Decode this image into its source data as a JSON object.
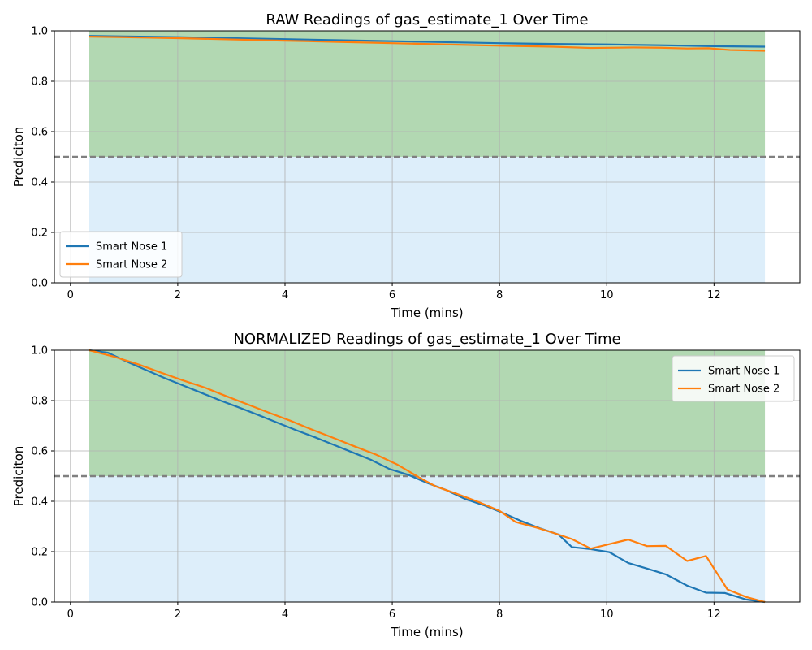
{
  "chart_data": [
    {
      "type": "line",
      "title": "RAW Readings of gas_estimate_1 Over Time",
      "xlabel": "Time (mins)",
      "ylabel": "Prediciton",
      "xlim": [
        -0.3,
        13.6
      ],
      "ylim": [
        0,
        1
      ],
      "xticks": [
        0,
        2,
        4,
        6,
        8,
        10,
        12
      ],
      "yticks": [
        0.0,
        0.2,
        0.4,
        0.6,
        0.8,
        1.0
      ],
      "grid": true,
      "legend_position": "lower-left",
      "threshold": 0.5,
      "shaded_regions": [
        {
          "x0": 0.35,
          "x1": 12.95,
          "y0": 0.5,
          "y1": 1.0,
          "color": "#b2d8b2"
        },
        {
          "x0": 0.35,
          "x1": 12.95,
          "y0": 0.0,
          "y1": 0.5,
          "color": "#ddeefa"
        }
      ],
      "series": [
        {
          "name": "Smart Nose 1",
          "color": "#1f77b4",
          "x": [
            0.35,
            1,
            2,
            3,
            4,
            5,
            6,
            7,
            8,
            9,
            10,
            11,
            12,
            12.95
          ],
          "y": [
            0.98,
            0.978,
            0.975,
            0.971,
            0.967,
            0.963,
            0.959,
            0.955,
            0.951,
            0.948,
            0.946,
            0.943,
            0.939,
            0.937
          ]
        },
        {
          "name": "Smart Nose 2",
          "color": "#ff7f0e",
          "x": [
            0.35,
            1,
            2,
            3,
            4,
            5,
            6,
            7,
            8,
            9,
            9.7,
            10.5,
            11,
            11.5,
            11.9,
            12.3,
            12.95
          ],
          "y": [
            0.977,
            0.975,
            0.971,
            0.966,
            0.961,
            0.956,
            0.951,
            0.946,
            0.941,
            0.937,
            0.932,
            0.934,
            0.933,
            0.93,
            0.931,
            0.924,
            0.921
          ]
        }
      ]
    },
    {
      "type": "line",
      "title": "NORMALIZED Readings of gas_estimate_1 Over Time",
      "xlabel": "Time (mins)",
      "ylabel": "Prediciton",
      "xlim": [
        -0.3,
        13.6
      ],
      "ylim": [
        0,
        1
      ],
      "xticks": [
        0,
        2,
        4,
        6,
        8,
        10,
        12
      ],
      "yticks": [
        0.0,
        0.2,
        0.4,
        0.6,
        0.8,
        1.0
      ],
      "grid": true,
      "legend_position": "upper-right",
      "threshold": 0.5,
      "shaded_regions": [
        {
          "x0": 0.35,
          "x1": 12.95,
          "y0": 0.5,
          "y1": 1.0,
          "color": "#b2d8b2"
        },
        {
          "x0": 0.35,
          "x1": 12.95,
          "y0": 0.0,
          "y1": 0.5,
          "color": "#ddeefa"
        }
      ],
      "series": [
        {
          "name": "Smart Nose 1",
          "color": "#1f77b4",
          "x": [
            0.35,
            0.7,
            1.05,
            1.4,
            1.75,
            2.1,
            2.45,
            2.8,
            3.15,
            3.5,
            3.85,
            4.2,
            4.55,
            4.9,
            5.25,
            5.6,
            5.95,
            6.3,
            6.65,
            7.0,
            7.35,
            7.7,
            8.05,
            8.4,
            8.75,
            9.1,
            9.35,
            9.7,
            10.05,
            10.4,
            10.75,
            11.1,
            11.5,
            11.85,
            12.2,
            12.6,
            12.95
          ],
          "y": [
            1.0,
            0.99,
            0.955,
            0.922,
            0.89,
            0.86,
            0.83,
            0.8,
            0.772,
            0.743,
            0.713,
            0.683,
            0.655,
            0.625,
            0.595,
            0.565,
            0.528,
            0.505,
            0.473,
            0.445,
            0.41,
            0.385,
            0.355,
            0.322,
            0.293,
            0.268,
            0.218,
            0.21,
            0.198,
            0.155,
            0.133,
            0.11,
            0.065,
            0.037,
            0.036,
            0.01,
            0.0
          ]
        },
        {
          "name": "Smart Nose 2",
          "color": "#ff7f0e",
          "x": [
            0.35,
            0.8,
            1.25,
            1.7,
            2.1,
            2.5,
            2.9,
            3.3,
            3.7,
            4.1,
            4.5,
            4.9,
            5.3,
            5.7,
            6.1,
            6.5,
            6.8,
            7.2,
            7.6,
            8.0,
            8.3,
            8.7,
            9.0,
            9.35,
            9.7,
            10.05,
            10.4,
            10.75,
            11.1,
            11.5,
            11.85,
            12.25,
            12.6,
            12.95
          ],
          "y": [
            1.0,
            0.975,
            0.945,
            0.91,
            0.88,
            0.852,
            0.818,
            0.785,
            0.752,
            0.72,
            0.685,
            0.652,
            0.618,
            0.585,
            0.545,
            0.495,
            0.46,
            0.43,
            0.398,
            0.362,
            0.318,
            0.295,
            0.275,
            0.25,
            0.212,
            0.23,
            0.248,
            0.222,
            0.223,
            0.163,
            0.183,
            0.05,
            0.02,
            0.0
          ]
        }
      ]
    }
  ]
}
